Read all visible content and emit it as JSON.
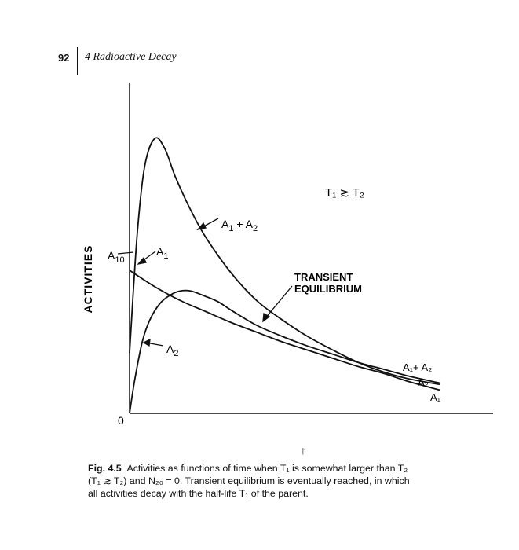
{
  "header": {
    "page_number": "92",
    "chapter_title": "4 Radioactive Decay"
  },
  "chart_data": {
    "type": "line",
    "ylabel": "ACTIVITIES",
    "condition_label": "T₁ ≳ T₂",
    "origin_label": "0",
    "x_axis_marker": "↑",
    "annotations": {
      "a10": "A",
      "a10_sub": "10",
      "a1": "A",
      "a1_sub": "1",
      "a2": "A",
      "a2_sub": "2",
      "sum_a": "A",
      "sum_sub1": "1",
      "sum_plus": " + A",
      "sum_sub2": "2",
      "transient_line1": "TRANSIENT",
      "transient_line2": "EQUILIBRIUM"
    },
    "end_labels": {
      "sum": "A₁+ A₂",
      "a2": "A₂",
      "a1": "A₁"
    },
    "series": [
      {
        "name": "A₁ + A₂",
        "x": [
          0,
          0.3,
          0.6,
          1.0,
          1.4,
          1.8,
          2.4,
          3.0,
          4.0,
          5.0,
          6.0,
          7.0,
          8.0,
          9.0,
          10.0,
          11.0,
          12.2
        ],
        "values": [
          22,
          65,
          90,
          100,
          96,
          86,
          74,
          64,
          51,
          41,
          34,
          28,
          23,
          18.5,
          15,
          12.5,
          10.5
        ]
      },
      {
        "name": "A₁",
        "x": [
          0,
          1,
          2,
          3,
          4,
          5,
          6,
          7,
          8,
          9,
          10,
          11,
          12.2
        ],
        "values": [
          52,
          46,
          41,
          37,
          33,
          29.5,
          26,
          23,
          20,
          17,
          14.5,
          11.5,
          8.5
        ]
      },
      {
        "name": "A₂",
        "x": [
          0,
          0.2,
          0.5,
          0.8,
          1.2,
          1.6,
          2.0,
          2.4,
          3.0,
          3.5,
          4.0,
          5.0,
          6.0,
          7.0,
          8.0,
          9.0,
          10.0,
          11.0,
          12.2
        ],
        "values": [
          0,
          12,
          26,
          34,
          40,
          43,
          44.5,
          44.5,
          42.5,
          40.5,
          37.5,
          32,
          28,
          24.5,
          21.5,
          18.5,
          16,
          13.5,
          11
        ]
      }
    ]
  },
  "caption": {
    "label": "Fig. 4.5",
    "text": "Activities as functions of time when T₁ is somewhat larger than T₂ (T₁ ≳ T₂) and N₂₀ = 0. Transient equilibrium is eventually reached, in which all activities decay with the half-life T₁ of the parent."
  }
}
